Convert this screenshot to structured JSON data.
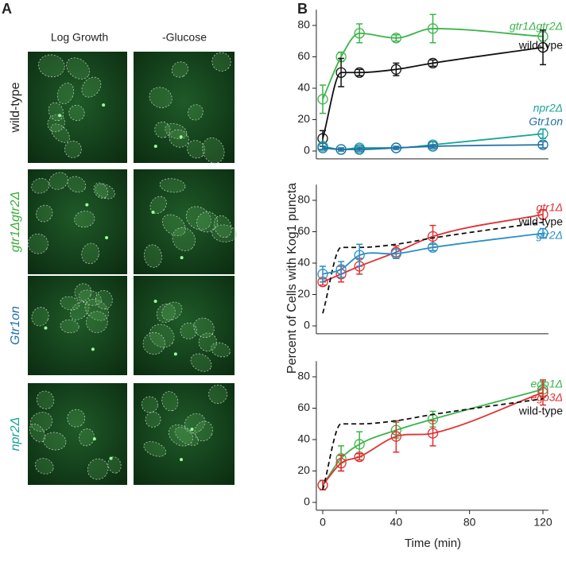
{
  "panel_a": {
    "label": "A",
    "columns": [
      "Log Growth",
      "-Glucose"
    ],
    "rows": [
      {
        "label": "wild-type",
        "color": "#222222"
      },
      {
        "label": "gtr1Δgtr2Δ",
        "color": "#3aae3a"
      },
      {
        "label": "Gtr1on",
        "color": "#1f6fa5"
      },
      {
        "label": "npr2Δ",
        "color": "#1aa39a"
      }
    ]
  },
  "panel_b": {
    "label": "B"
  },
  "chart_data": [
    {
      "type": "line",
      "x": [
        0,
        10,
        20,
        40,
        60,
        120
      ],
      "xlim": [
        -3.5,
        123
      ],
      "ylim": [
        -5,
        90
      ],
      "yticks": [
        0,
        20,
        40,
        60,
        80
      ],
      "series": [
        {
          "name": "gtr1Δgtr2Δ",
          "color": "#3cb44b",
          "values": [
            33,
            60,
            75,
            72,
            78,
            73
          ],
          "errors": [
            9,
            3,
            6,
            2,
            9,
            3
          ]
        },
        {
          "name": "wild-type",
          "color": "#111111",
          "values": [
            8,
            50,
            50,
            52,
            56,
            66
          ],
          "errors": [
            5,
            9,
            2,
            4,
            2,
            11
          ]
        },
        {
          "name": "npr2Δ",
          "color": "#1aa39a",
          "values": [
            3,
            1,
            2,
            2,
            4,
            11
          ],
          "errors": [
            2,
            1,
            1,
            1,
            2,
            3
          ]
        },
        {
          "name": "Gtr1on",
          "color": "#1f6fa5",
          "values": [
            2,
            1,
            1,
            2,
            3,
            4
          ],
          "errors": [
            1,
            1,
            1,
            1,
            1,
            2
          ]
        }
      ]
    },
    {
      "type": "line",
      "x": [
        0,
        10,
        20,
        40,
        60,
        120
      ],
      "xlim": [
        -3.5,
        123
      ],
      "ylim": [
        -5,
        90
      ],
      "yticks": [
        0,
        20,
        40,
        60,
        80
      ],
      "ylabel": "Percent of Cells with Kog1 puncta",
      "series": [
        {
          "name": "gtr1Δ",
          "color": "#e03030",
          "values": [
            28,
            33,
            38,
            47,
            57,
            71
          ],
          "errors": [
            2,
            5,
            5,
            4,
            7,
            3
          ]
        },
        {
          "name": "wild-type",
          "color": "#111111",
          "dashed": true,
          "values": [
            8,
            50,
            50,
            52,
            56,
            66
          ]
        },
        {
          "name": "gtr2Δ",
          "color": "#2a8fc6",
          "values": [
            33,
            36,
            45,
            46,
            50,
            59
          ],
          "errors": [
            5,
            5,
            7,
            3,
            2,
            3
          ]
        }
      ]
    },
    {
      "type": "line",
      "x": [
        0,
        10,
        20,
        40,
        60,
        120
      ],
      "xlim": [
        -3.5,
        123
      ],
      "ylim": [
        -5,
        90
      ],
      "yticks": [
        0,
        20,
        40,
        60,
        80
      ],
      "xticks": [
        0,
        40,
        80,
        120
      ],
      "xlabel": "Time (min)",
      "series": [
        {
          "name": "ego1Δ",
          "color": "#3cb44b",
          "values": [
            11,
            28,
            37,
            46,
            53,
            72
          ],
          "errors": [
            3,
            8,
            8,
            5,
            5,
            5
          ]
        },
        {
          "name": "ego3Δ",
          "color": "#e03030",
          "values": [
            11,
            25,
            29,
            42,
            44,
            70
          ],
          "errors": [
            3,
            5,
            2,
            10,
            8,
            8
          ]
        },
        {
          "name": "wild-type",
          "color": "#111111",
          "dashed": true,
          "values": [
            8,
            50,
            50,
            52,
            56,
            66
          ]
        }
      ]
    }
  ]
}
